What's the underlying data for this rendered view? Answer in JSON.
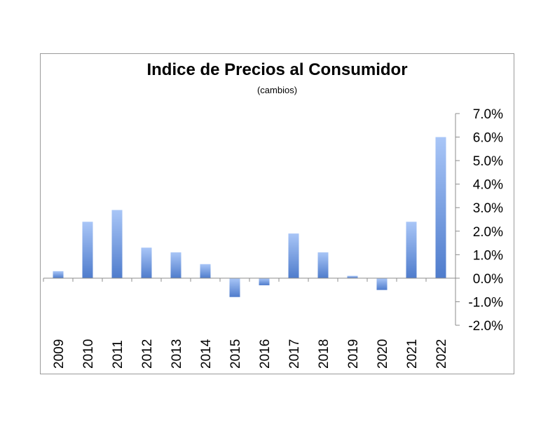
{
  "chart_data": {
    "type": "bar",
    "title": "Indice de Precios al Consumidor",
    "subtitle": "(cambios)",
    "categories": [
      "2009",
      "2010",
      "2011",
      "2012",
      "2013",
      "2014",
      "2015",
      "2016",
      "2017",
      "2018",
      "2019",
      "2020",
      "2021",
      "2022"
    ],
    "values": [
      0.3,
      2.4,
      2.9,
      1.3,
      1.1,
      0.6,
      -0.8,
      -0.3,
      1.9,
      1.1,
      0.1,
      -0.5,
      2.4,
      6.0
    ],
    "ylim": [
      -2.0,
      7.0
    ],
    "yticks": [
      "7.0%",
      "6.0%",
      "5.0%",
      "4.0%",
      "3.0%",
      "2.0%",
      "1.0%",
      "0.0%",
      "-1.0%",
      "-2.0%"
    ],
    "ytick_values": [
      7,
      6,
      5,
      4,
      3,
      2,
      1,
      0,
      -1,
      -2
    ],
    "y_axis_position": "right",
    "grid": false,
    "legend": "none",
    "colors": {
      "bar_top": "#a9c6f7",
      "bar_bottom": "#4f7ccc",
      "axis": "#8c8c8c"
    }
  }
}
